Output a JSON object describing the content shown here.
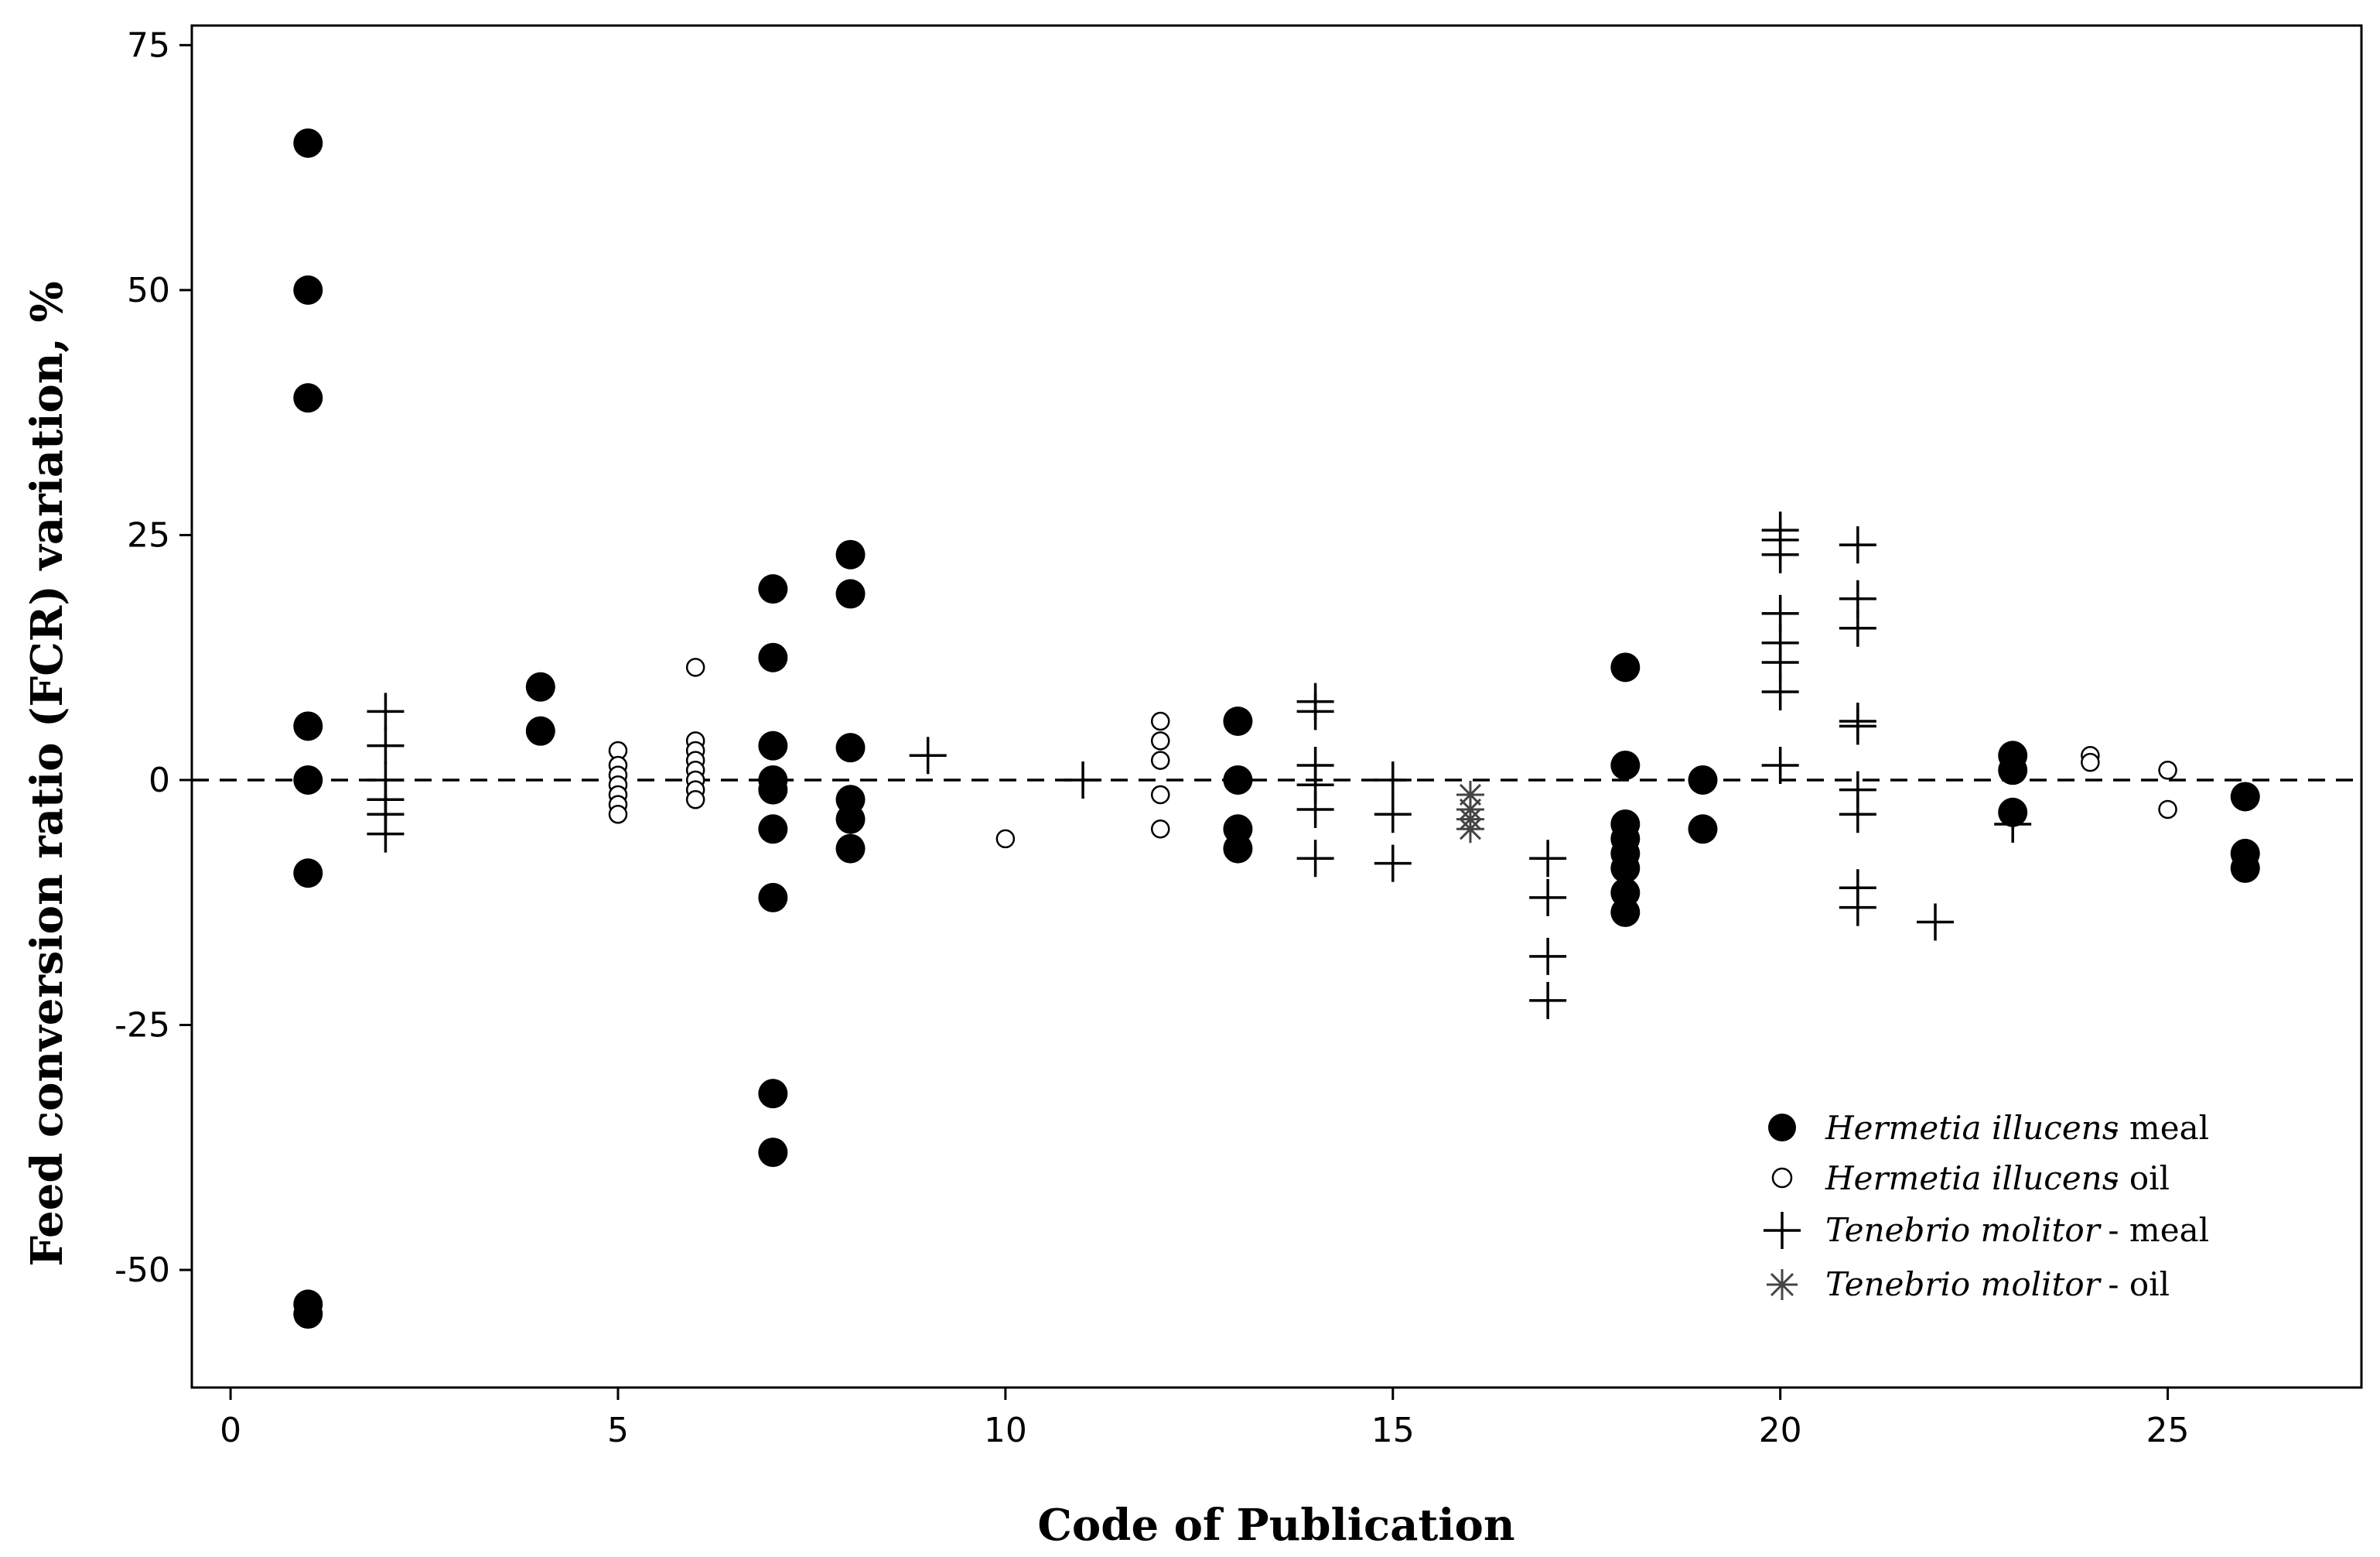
{
  "chart_data": {
    "type": "scatter",
    "xlabel": "Code of Publication",
    "ylabel": "Feed conversion ratio (FCR) variation, %",
    "xlim": [
      -0.5,
      27.5
    ],
    "ylim": [
      -62,
      77
    ],
    "xticks": [
      "0",
      "5",
      "10",
      "15",
      "20",
      "25"
    ],
    "yticks": [
      "75",
      "50",
      "25",
      "0",
      "-25",
      "-50"
    ],
    "reference_line": {
      "y": 0,
      "style": "dashed"
    },
    "legend_position": "bottom-right",
    "series": [
      {
        "species": "Hermetia illucens",
        "type": " - meal",
        "marker": "filled-circle",
        "points": [
          [
            1,
            65
          ],
          [
            1,
            50
          ],
          [
            1,
            39
          ],
          [
            1,
            5.5
          ],
          [
            1,
            0
          ],
          [
            1,
            -9.5
          ],
          [
            1,
            -53.5
          ],
          [
            1,
            -54.5
          ],
          [
            4,
            9.5
          ],
          [
            4,
            5
          ],
          [
            7,
            19.5
          ],
          [
            7,
            12.5
          ],
          [
            7,
            3.5
          ],
          [
            7,
            0
          ],
          [
            7,
            -1
          ],
          [
            7,
            -5
          ],
          [
            7,
            -12
          ],
          [
            7,
            -32
          ],
          [
            7,
            -38
          ],
          [
            8,
            23
          ],
          [
            8,
            19
          ],
          [
            8,
            3.3
          ],
          [
            8,
            -2
          ],
          [
            8,
            -4
          ],
          [
            8,
            -7
          ],
          [
            13,
            6
          ],
          [
            13,
            0
          ],
          [
            13,
            -5
          ],
          [
            13,
            -7
          ],
          [
            18,
            11.5
          ],
          [
            18,
            1.5
          ],
          [
            18,
            -4.5
          ],
          [
            18,
            -6
          ],
          [
            18,
            -7.5
          ],
          [
            18,
            -9
          ],
          [
            18,
            -11.5
          ],
          [
            18,
            -13.5
          ],
          [
            19,
            0
          ],
          [
            19,
            -5
          ],
          [
            23,
            2.5
          ],
          [
            23,
            1
          ],
          [
            23,
            -3.3
          ],
          [
            26,
            -1.7
          ],
          [
            26,
            -7.5
          ],
          [
            26,
            -9
          ]
        ]
      },
      {
        "species": "Hermetia illucens",
        "type": " - oil",
        "marker": "open-circle",
        "points": [
          [
            5,
            3
          ],
          [
            5,
            1.5
          ],
          [
            5,
            0.5
          ],
          [
            5,
            -0.5
          ],
          [
            5,
            -1.5
          ],
          [
            5,
            -2.5
          ],
          [
            5,
            -3.5
          ],
          [
            6,
            11.5
          ],
          [
            6,
            4
          ],
          [
            6,
            3
          ],
          [
            6,
            2
          ],
          [
            6,
            1
          ],
          [
            6,
            0
          ],
          [
            6,
            -1
          ],
          [
            6,
            -2
          ],
          [
            10,
            -6
          ],
          [
            12,
            6
          ],
          [
            12,
            4
          ],
          [
            12,
            2
          ],
          [
            12,
            -1.5
          ],
          [
            12,
            -5
          ],
          [
            24,
            2.5
          ],
          [
            24,
            1.8
          ],
          [
            25,
            1
          ],
          [
            25,
            -3
          ]
        ]
      },
      {
        "species": "Tenebrio molitor",
        "type": " - meal",
        "marker": "plus",
        "points": [
          [
            2,
            7
          ],
          [
            2,
            3.5
          ],
          [
            2,
            0
          ],
          [
            2,
            -2
          ],
          [
            2,
            -3.5
          ],
          [
            2,
            -5.5
          ],
          [
            9,
            2.5
          ],
          [
            11,
            0
          ],
          [
            14,
            8
          ],
          [
            14,
            7
          ],
          [
            14,
            1.5
          ],
          [
            14,
            -0.5
          ],
          [
            14,
            -3
          ],
          [
            14,
            -8
          ],
          [
            15,
            0
          ],
          [
            15,
            -3.5
          ],
          [
            15,
            -8.5
          ],
          [
            17,
            -8
          ],
          [
            17,
            -12
          ],
          [
            17,
            -18
          ],
          [
            17,
            -22.5
          ],
          [
            20,
            25.5
          ],
          [
            20,
            24.5
          ],
          [
            20,
            23
          ],
          [
            20,
            17
          ],
          [
            20,
            14
          ],
          [
            20,
            12
          ],
          [
            20,
            9
          ],
          [
            20,
            1.5
          ],
          [
            21,
            24
          ],
          [
            21,
            18.5
          ],
          [
            21,
            15.5
          ],
          [
            21,
            6
          ],
          [
            21,
            5.5
          ],
          [
            21,
            -1
          ],
          [
            21,
            -3.5
          ],
          [
            21,
            -11
          ],
          [
            21,
            -13
          ],
          [
            22,
            -14.5
          ],
          [
            23,
            -4.5
          ]
        ]
      },
      {
        "species": "Tenebrio molitor",
        "type": " - oil",
        "marker": "asterisk",
        "points": [
          [
            16,
            -1.5
          ],
          [
            16,
            -3
          ],
          [
            16,
            -4
          ],
          [
            16,
            -5
          ]
        ]
      }
    ]
  },
  "colors": {
    "background": "#ffffff",
    "ink": "#000000",
    "asterisk": "#444444"
  }
}
